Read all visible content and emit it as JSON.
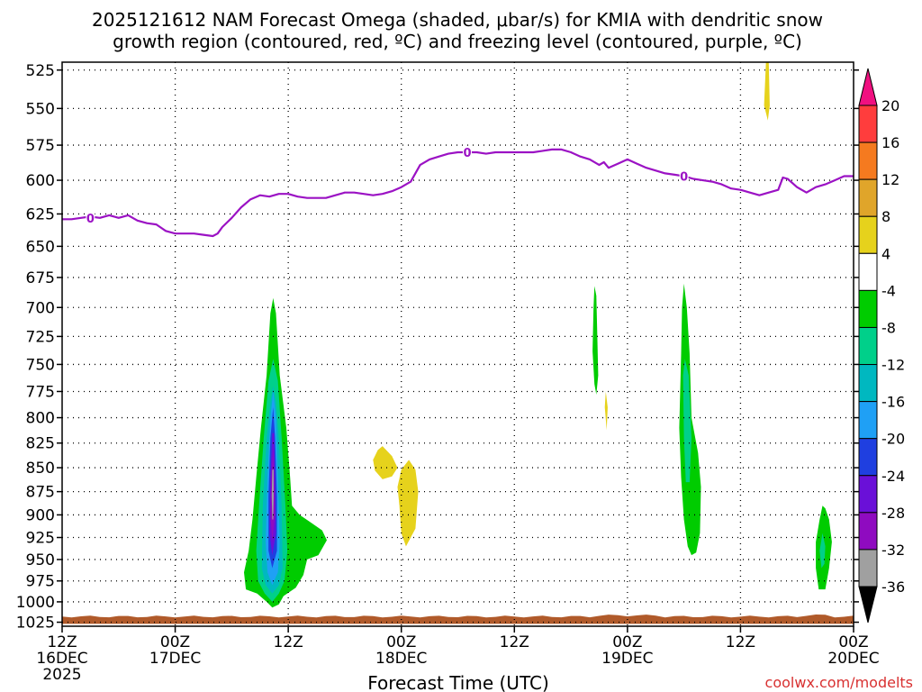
{
  "chart_data": {
    "type": "heatmap",
    "title_line1": "2025121612 NAM Forecast Omega (shaded, μbar/s) for KMIA with dendritic snow",
    "title_line2": "growth region (contoured, red, ºC) and freezing level (contoured, purple, ºC)",
    "xlabel": "Forecast Time (UTC)",
    "credit": "coolwx.com/modelts",
    "x_range_hours": [
      0,
      84
    ],
    "pressure_range_mb": [
      1030,
      520
    ],
    "pressure_levels": [
      525,
      550,
      575,
      600,
      625,
      650,
      675,
      700,
      725,
      750,
      775,
      800,
      825,
      850,
      875,
      900,
      925,
      950,
      975,
      1000,
      1025
    ],
    "x_ticks": [
      {
        "hour": 0,
        "line1": "12Z",
        "line2": "16DEC",
        "line3": "2025"
      },
      {
        "hour": 12,
        "line1": "00Z",
        "line2": "17DEC"
      },
      {
        "hour": 24,
        "line1": "12Z"
      },
      {
        "hour": 36,
        "line1": "00Z",
        "line2": "18DEC"
      },
      {
        "hour": 48,
        "line1": "12Z"
      },
      {
        "hour": 60,
        "line1": "00Z",
        "line2": "19DEC"
      },
      {
        "hour": 72,
        "line1": "12Z"
      },
      {
        "hour": 84,
        "line1": "00Z",
        "line2": "20DEC"
      }
    ],
    "colorbar": {
      "labels": [
        "20",
        "16",
        "12",
        "8",
        "4",
        "-4",
        "-8",
        "-12",
        "-16",
        "-20",
        "-24",
        "-28",
        "-32",
        "-36"
      ],
      "colors_top_to_bottom": [
        "#ff3d3d",
        "#f57a1f",
        "#e0a52a",
        "#e6d21c",
        "#ffffff",
        "#00cc00",
        "#00d08a",
        "#00b8c0",
        "#1fa0f5",
        "#1f3fe0",
        "#6a10d8",
        "#8f0bc0",
        "#a0a0a0"
      ],
      "top_arrow_color": "#f01080",
      "bottom_arrow_color": "#000000"
    },
    "freezing_level": {
      "label": "0",
      "color": "#9b12c4",
      "points": [
        [
          0,
          629
        ],
        [
          1,
          629
        ],
        [
          2,
          628
        ],
        [
          3,
          627
        ],
        [
          4,
          628
        ],
        [
          5,
          626
        ],
        [
          6,
          628
        ],
        [
          7,
          626
        ],
        [
          8,
          630
        ],
        [
          9,
          632
        ],
        [
          10,
          633
        ],
        [
          11,
          638
        ],
        [
          12,
          640
        ],
        [
          13,
          640
        ],
        [
          14,
          640
        ],
        [
          15,
          641
        ],
        [
          16,
          642
        ],
        [
          16.5,
          640
        ],
        [
          17,
          635
        ],
        [
          18,
          628
        ],
        [
          19,
          620
        ],
        [
          20,
          614
        ],
        [
          21,
          611
        ],
        [
          22,
          612
        ],
        [
          23,
          610
        ],
        [
          24,
          610
        ],
        [
          25,
          612
        ],
        [
          26,
          613
        ],
        [
          27,
          613
        ],
        [
          28,
          613
        ],
        [
          29,
          611
        ],
        [
          30,
          609
        ],
        [
          31,
          609
        ],
        [
          32,
          610
        ],
        [
          33,
          611
        ],
        [
          34,
          610
        ],
        [
          35,
          608
        ],
        [
          36,
          605
        ],
        [
          37,
          601
        ],
        [
          38,
          589
        ],
        [
          39,
          585
        ],
        [
          40,
          583
        ],
        [
          41,
          581
        ],
        [
          42,
          580
        ],
        [
          43,
          580
        ],
        [
          44,
          580
        ],
        [
          45,
          581
        ],
        [
          46,
          580
        ],
        [
          47,
          580
        ],
        [
          48,
          580
        ],
        [
          49,
          580
        ],
        [
          50,
          580
        ],
        [
          51,
          579
        ],
        [
          52,
          578
        ],
        [
          53,
          578
        ],
        [
          54,
          580
        ],
        [
          55,
          583
        ],
        [
          56,
          585
        ],
        [
          57,
          589
        ],
        [
          57.5,
          587
        ],
        [
          58,
          591
        ],
        [
          59,
          588
        ],
        [
          60,
          585
        ],
        [
          61,
          588
        ],
        [
          62,
          591
        ],
        [
          63,
          593
        ],
        [
          64,
          595
        ],
        [
          65,
          596
        ],
        [
          66,
          597
        ],
        [
          67,
          599
        ],
        [
          68,
          600
        ],
        [
          69,
          601
        ],
        [
          70,
          603
        ],
        [
          71,
          606
        ],
        [
          72,
          607
        ],
        [
          73,
          609
        ],
        [
          74,
          611
        ],
        [
          75,
          609
        ],
        [
          76,
          607
        ],
        [
          76.5,
          598
        ],
        [
          77,
          599
        ],
        [
          78,
          605
        ],
        [
          79,
          609
        ],
        [
          80,
          605
        ],
        [
          81,
          603
        ],
        [
          82,
          600
        ],
        [
          83,
          597
        ],
        [
          84,
          597
        ]
      ]
    },
    "shaded_regions": [
      {
        "name": "green",
        "color": "#00cc00",
        "points": [
          [
            22.3,
            1007
          ],
          [
            21.7,
            1000
          ],
          [
            20.7,
            990
          ],
          [
            19.5,
            985
          ],
          [
            19.3,
            965
          ],
          [
            19.8,
            940
          ],
          [
            20.2,
            905
          ],
          [
            20.6,
            860
          ],
          [
            21.1,
            810
          ],
          [
            21.7,
            760
          ],
          [
            22.1,
            705
          ],
          [
            22.4,
            692
          ],
          [
            22.7,
            705
          ],
          [
            23.1,
            760
          ],
          [
            23.8,
            810
          ],
          [
            24.2,
            860
          ],
          [
            24.4,
            890
          ],
          [
            25.2,
            900
          ],
          [
            26.2,
            907
          ],
          [
            27.6,
            917
          ],
          [
            28.1,
            928
          ],
          [
            27.2,
            945
          ],
          [
            26.0,
            950
          ],
          [
            25.6,
            968
          ],
          [
            24.8,
            983
          ],
          [
            23.5,
            993
          ],
          [
            23.0,
            1003
          ]
        ]
      },
      {
        "name": "teal",
        "color": "#00d08a",
        "points": [
          [
            22.3,
            1000
          ],
          [
            21.5,
            990
          ],
          [
            20.8,
            975
          ],
          [
            20.6,
            940
          ],
          [
            20.9,
            890
          ],
          [
            21.4,
            820
          ],
          [
            21.9,
            765
          ],
          [
            22.4,
            745
          ],
          [
            22.9,
            765
          ],
          [
            23.3,
            820
          ],
          [
            23.7,
            890
          ],
          [
            23.9,
            940
          ],
          [
            23.6,
            975
          ],
          [
            23.0,
            990
          ]
        ]
      },
      {
        "name": "cyan",
        "color": "#00b8c0",
        "points": [
          [
            22.3,
            990
          ],
          [
            21.6,
            980
          ],
          [
            21.2,
            960
          ],
          [
            21.3,
            890
          ],
          [
            21.7,
            820
          ],
          [
            22.1,
            785
          ],
          [
            22.4,
            770
          ],
          [
            22.7,
            785
          ],
          [
            23.0,
            820
          ],
          [
            23.3,
            890
          ],
          [
            23.4,
            960
          ],
          [
            23.0,
            980
          ]
        ]
      },
      {
        "name": "sky",
        "color": "#1fa0f5",
        "points": [
          [
            22.3,
            980
          ],
          [
            21.8,
            965
          ],
          [
            21.6,
            930
          ],
          [
            21.8,
            860
          ],
          [
            22.1,
            800
          ],
          [
            22.4,
            775
          ],
          [
            22.7,
            800
          ],
          [
            22.9,
            860
          ],
          [
            23.1,
            930
          ],
          [
            22.9,
            965
          ]
        ]
      },
      {
        "name": "blue",
        "color": "#1f3fe0",
        "points": [
          [
            22.3,
            960
          ],
          [
            21.9,
            940
          ],
          [
            21.9,
            880
          ],
          [
            22.1,
            820
          ],
          [
            22.4,
            790
          ],
          [
            22.6,
            820
          ],
          [
            22.8,
            880
          ],
          [
            22.8,
            940
          ]
        ]
      },
      {
        "name": "purple1",
        "color": "#6a10d8",
        "points": [
          [
            22.3,
            945
          ],
          [
            22.0,
            920
          ],
          [
            22.1,
            860
          ],
          [
            22.3,
            815
          ],
          [
            22.5,
            815
          ],
          [
            22.6,
            860
          ],
          [
            22.7,
            920
          ]
        ]
      },
      {
        "name": "purple2",
        "color": "#8f0bc0",
        "points": [
          [
            22.3,
            930
          ],
          [
            22.1,
            900
          ],
          [
            22.2,
            860
          ],
          [
            22.4,
            830
          ],
          [
            22.5,
            860
          ],
          [
            22.6,
            900
          ]
        ]
      },
      {
        "name": "grey",
        "color": "#a0a0a0",
        "points": [
          [
            22.3,
            905
          ],
          [
            22.25,
            880
          ],
          [
            22.3,
            852
          ],
          [
            22.45,
            852
          ],
          [
            22.45,
            880
          ],
          [
            22.4,
            905
          ]
        ]
      },
      {
        "name": "yellow1",
        "color": "#e6d21c",
        "points": [
          [
            33.0,
            842
          ],
          [
            33.5,
            832
          ],
          [
            34.0,
            828
          ],
          [
            35.0,
            838
          ],
          [
            35.6,
            850
          ],
          [
            35.0,
            859
          ],
          [
            34.0,
            862
          ],
          [
            33.2,
            853
          ]
        ]
      },
      {
        "name": "yellow2",
        "color": "#e6d21c",
        "points": [
          [
            35.6,
            870
          ],
          [
            36.0,
            852
          ],
          [
            36.8,
            842
          ],
          [
            37.5,
            852
          ],
          [
            37.8,
            875
          ],
          [
            37.5,
            915
          ],
          [
            36.5,
            935
          ],
          [
            36.0,
            920
          ],
          [
            35.8,
            890
          ]
        ]
      },
      {
        "name": "green2",
        "color": "#00cc00",
        "points": [
          [
            56.3,
            738
          ],
          [
            56.4,
            700
          ],
          [
            56.5,
            682
          ],
          [
            56.7,
            690
          ],
          [
            56.8,
            725
          ],
          [
            56.9,
            760
          ],
          [
            56.7,
            778
          ],
          [
            56.5,
            768
          ]
        ]
      },
      {
        "name": "yellow3",
        "color": "#e6d21c",
        "points": [
          [
            57.6,
            790
          ],
          [
            57.7,
            775
          ],
          [
            57.9,
            790
          ],
          [
            57.8,
            812
          ]
        ]
      },
      {
        "name": "green3",
        "color": "#00cc00",
        "points": [
          [
            66.4,
            935
          ],
          [
            66.0,
            905
          ],
          [
            65.7,
            860
          ],
          [
            65.5,
            810
          ],
          [
            65.7,
            740
          ],
          [
            65.8,
            700
          ],
          [
            66.0,
            680
          ],
          [
            66.3,
            700
          ],
          [
            66.6,
            740
          ],
          [
            66.8,
            800
          ],
          [
            67.5,
            835
          ],
          [
            67.8,
            870
          ],
          [
            67.7,
            920
          ],
          [
            67.3,
            942
          ],
          [
            66.8,
            945
          ]
        ]
      },
      {
        "name": "teal3",
        "color": "#00d08a",
        "points": [
          [
            66.2,
            865
          ],
          [
            66.0,
            820
          ],
          [
            65.9,
            760
          ],
          [
            66.1,
            745
          ],
          [
            66.5,
            760
          ],
          [
            66.8,
            820
          ],
          [
            66.6,
            865
          ]
        ]
      },
      {
        "name": "green4",
        "color": "#00cc00",
        "points": [
          [
            80.3,
            985
          ],
          [
            80.0,
            960
          ],
          [
            80.0,
            930
          ],
          [
            80.4,
            905
          ],
          [
            80.7,
            890
          ],
          [
            81.0,
            893
          ],
          [
            81.4,
            905
          ],
          [
            81.7,
            930
          ],
          [
            81.4,
            960
          ],
          [
            81.0,
            985
          ]
        ]
      },
      {
        "name": "teal4",
        "color": "#00d08a",
        "points": [
          [
            80.6,
            960
          ],
          [
            80.4,
            940
          ],
          [
            80.7,
            920
          ],
          [
            81.0,
            935
          ],
          [
            80.9,
            955
          ]
        ]
      },
      {
        "name": "yellow4",
        "color": "#e6d21c",
        "points": [
          [
            74.5,
            548
          ],
          [
            74.7,
            520
          ],
          [
            75.0,
            520
          ],
          [
            75.1,
            548
          ],
          [
            74.9,
            558
          ]
        ]
      }
    ],
    "ground": {
      "color": "#b05a2a",
      "top_mb": 1018,
      "bottom_mb": 1027
    }
  }
}
